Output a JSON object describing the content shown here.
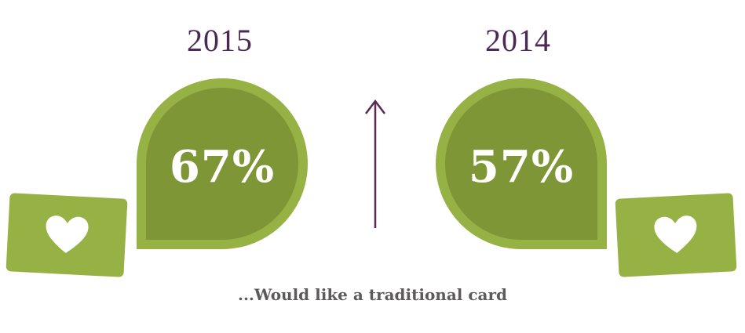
{
  "left": {
    "year": "2015",
    "percent": "67%"
  },
  "right": {
    "year": "2014",
    "percent": "57%"
  },
  "trend": "up-arrow",
  "caption": "...Would like a traditional card",
  "colors": {
    "green_light": "#96b144",
    "green_dark": "#7f9637",
    "purple": "#4a2a55",
    "caption_gray": "#5c5a5a"
  },
  "icons": [
    "heart-icon",
    "arrow-up-icon"
  ]
}
